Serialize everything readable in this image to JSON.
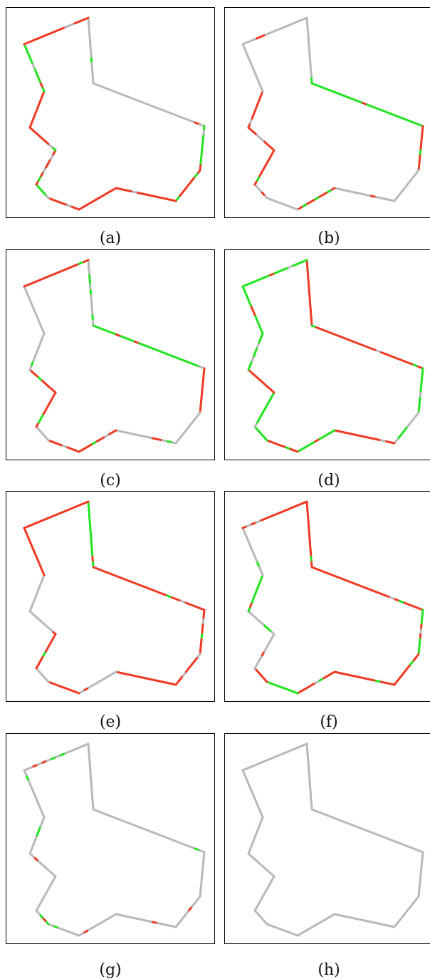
{
  "colors": {
    "neutral": "#b9b9b9",
    "positive": "#22e41f",
    "negative": "#ef3a25",
    "frame": "#000000"
  },
  "panels": [
    {
      "label": "(a)",
      "main_color": "#22e41f",
      "noise": 0.12
    },
    {
      "label": "(b)",
      "main_color": "#ef3a25",
      "noise": 0.18
    },
    {
      "label": "(c)",
      "main_color": "#ef3a25",
      "noise": 0.22
    },
    {
      "label": "(d)",
      "main_color": "#22e41f",
      "noise": 0.25
    },
    {
      "label": "(e)",
      "main_color": "#ef3a25",
      "noise": 0.15
    },
    {
      "label": "(f)",
      "main_color": "#22e41f",
      "noise": 0.2
    },
    {
      "label": "(g)",
      "main_color": "#b9b9b9",
      "noise": 0.18
    },
    {
      "label": "(h)",
      "main_color": "#b9b9b9",
      "noise": 0.0
    }
  ]
}
